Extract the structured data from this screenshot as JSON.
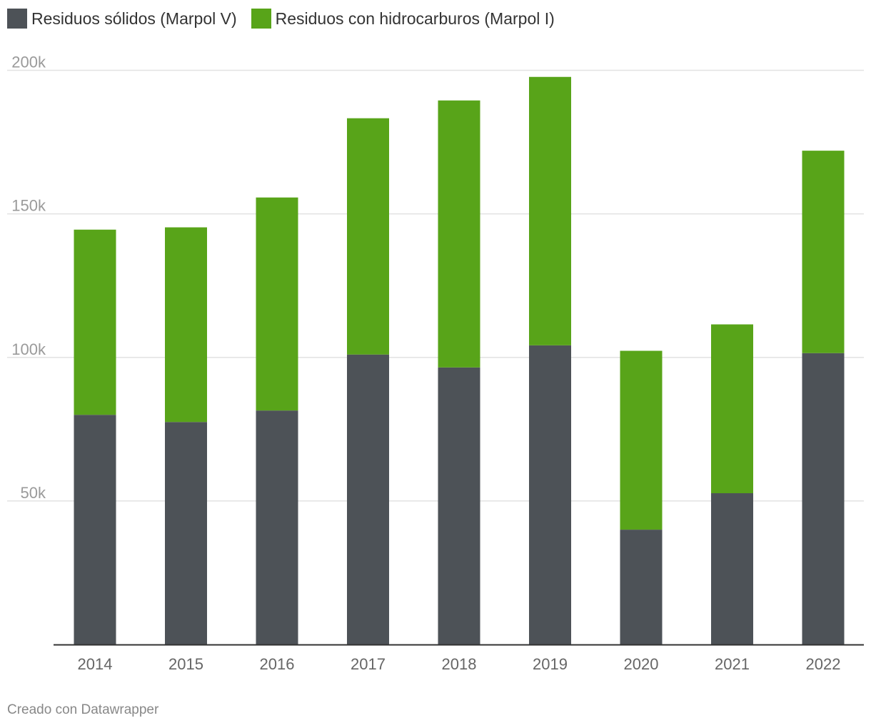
{
  "chart_data": {
    "type": "bar",
    "stacked": true,
    "categories": [
      "2014",
      "2015",
      "2016",
      "2017",
      "2018",
      "2019",
      "2020",
      "2021",
      "2022"
    ],
    "series": [
      {
        "name": "Residuos sólidos (Marpol V)",
        "color": "#4d5257",
        "values": [
          80000,
          77500,
          81500,
          101000,
          96500,
          104200,
          40000,
          52700,
          101500
        ]
      },
      {
        "name": "Residuos con hidrocarburos (Marpol I)",
        "color": "#58a419",
        "values": [
          64500,
          67800,
          74200,
          82300,
          93000,
          93500,
          62300,
          58800,
          70500
        ]
      }
    ],
    "y_ticks": [
      50000,
      100000,
      150000,
      200000
    ],
    "y_tick_labels": [
      "50k",
      "100k",
      "150k",
      "200k"
    ],
    "ylim": [
      0,
      200000
    ],
    "grid": true,
    "legend_position": "top-left",
    "title": "",
    "xlabel": "",
    "ylabel": ""
  },
  "footer": {
    "credit": "Creado con Datawrapper"
  }
}
